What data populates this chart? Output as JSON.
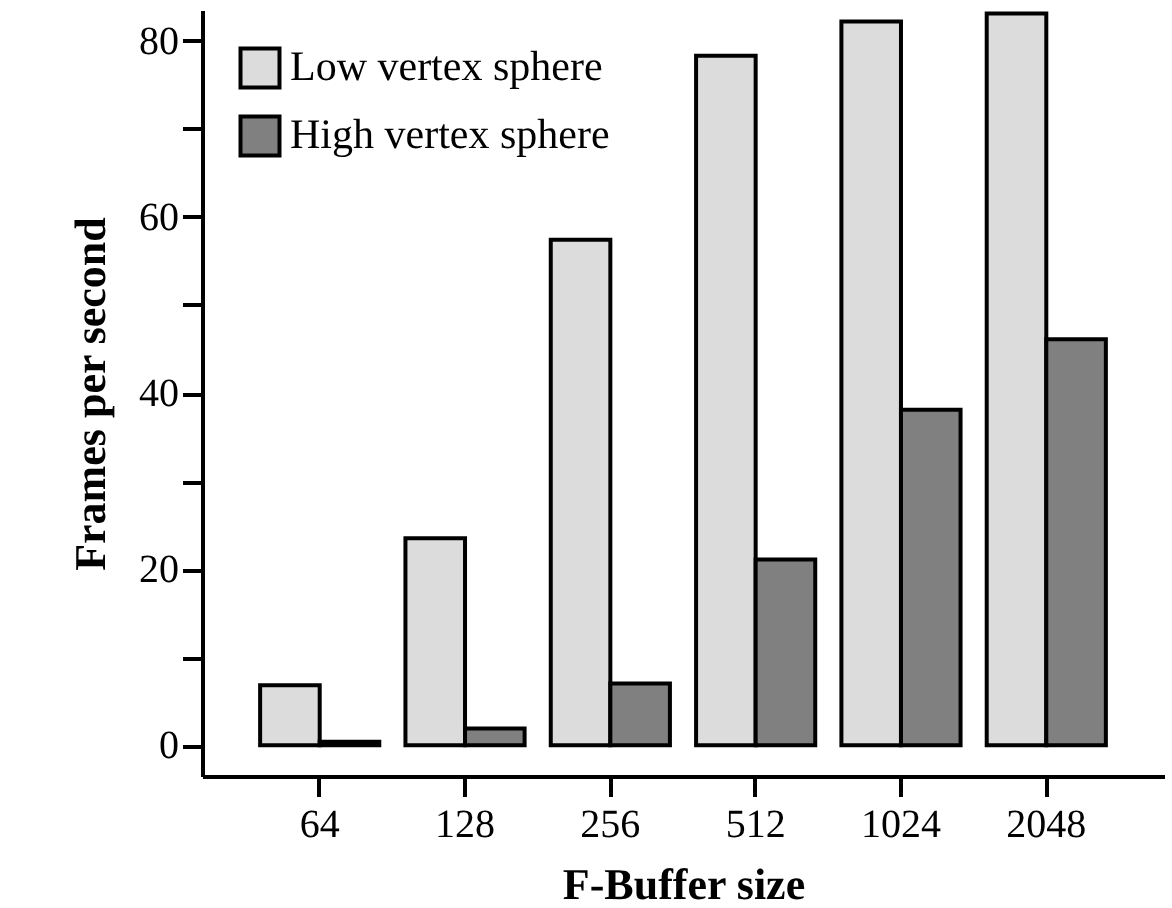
{
  "chart_data": {
    "type": "bar",
    "xlabel": "F-Buffer size",
    "ylabel": "Frames per second",
    "categories": [
      "64",
      "128",
      "256",
      "512",
      "1024",
      "2048"
    ],
    "series": [
      {
        "name": "Low vertex sphere",
        "color": "#dcdcdc",
        "values": [
          6.8,
          23.5,
          57.4,
          78.3,
          82.2,
          83.1
        ]
      },
      {
        "name": "High vertex sphere",
        "color": "#808080",
        "values": [
          0.4,
          1.9,
          7.0,
          21.1,
          38.1,
          46.1
        ]
      }
    ],
    "ylim": [
      -3.5,
      83.5
    ],
    "yticks": [
      0,
      {
        "value": 10,
        "label": null
      },
      20,
      {
        "value": 30,
        "label": null
      },
      40,
      {
        "value": 50,
        "label": null
      },
      60,
      {
        "value": 70,
        "label": null
      },
      80
    ],
    "grid": false,
    "legend": "top left"
  }
}
